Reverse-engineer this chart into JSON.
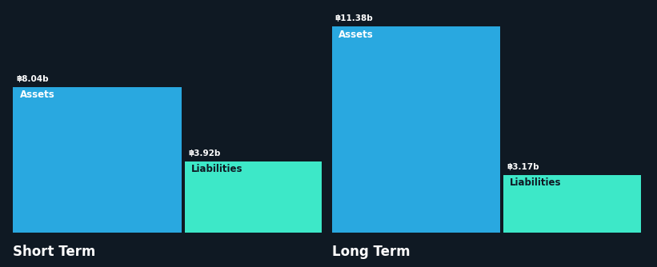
{
  "background_color": "#0f1923",
  "asset_color": "#29a8e0",
  "liability_color": "#3de8c8",
  "text_color_white": "#ffffff",
  "text_color_dark": "#0f1923",
  "label_fontsize": 8.5,
  "value_fontsize": 7.5,
  "title_fontsize": 12,
  "currency": "฿",
  "sections": [
    {
      "title": "Short Term",
      "asset_value": 8.04,
      "liability_value": 3.92,
      "asset_label": "Assets",
      "liability_label": "Liabilities"
    },
    {
      "title": "Long Term",
      "asset_value": 11.38,
      "liability_value": 3.17,
      "asset_label": "Assets",
      "liability_label": "Liabilities"
    }
  ],
  "global_max": 11.38,
  "figwidth": 8.21,
  "figheight": 3.34,
  "dpi": 100
}
